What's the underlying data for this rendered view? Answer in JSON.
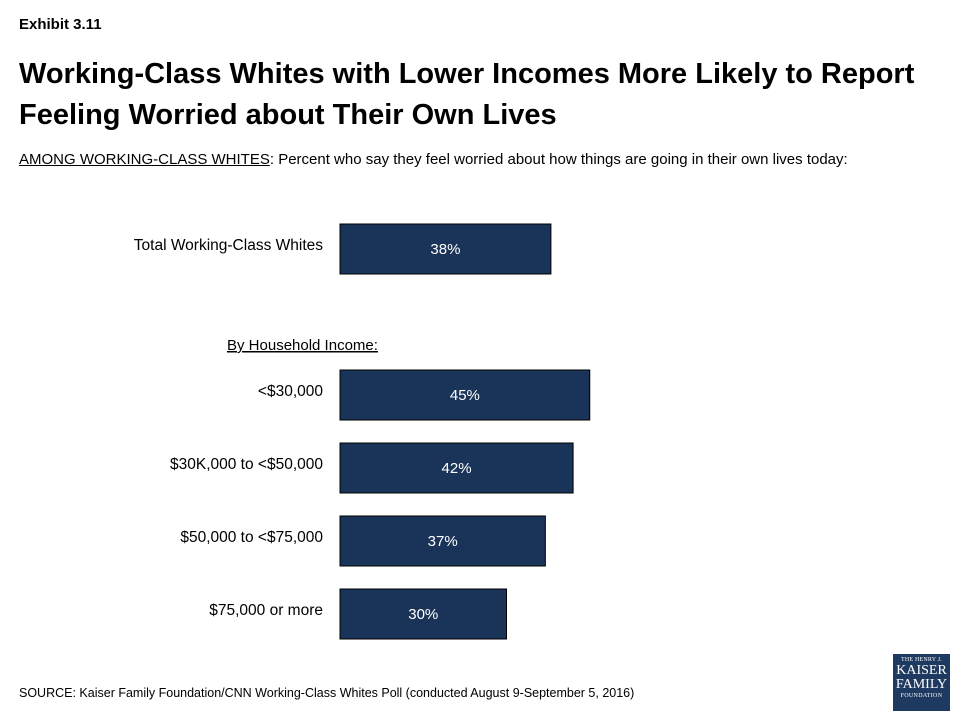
{
  "exhibit_label": "Exhibit 3.11",
  "title": "Working-Class Whites with Lower Incomes More Likely to Report Feeling Worried about Their Own Lives",
  "subtitle": {
    "underlined": "AMONG WORKING-CLASS WHITES",
    "text": ": Percent who say they feel worried about how things are going in their own lives today:"
  },
  "group_label": "By Household Income:",
  "source": "SOURCE: Kaiser Family Foundation/CNN Working-Class Whites Poll (conducted August 9-September 5, 2016)",
  "logo": {
    "line1": "THE HENRY J.",
    "line2": "KAISER",
    "line3": "FAMILY",
    "line4": "FOUNDATION"
  },
  "colors": {
    "bar": "#1a3358",
    "bar_text": "#ffffff",
    "logo_bg": "#1f3a60"
  },
  "chart_data": {
    "type": "bar",
    "orientation": "horizontal",
    "title": "Working-Class Whites with Lower Incomes More Likely to Report Feeling Worried about Their Own Lives",
    "categories": [
      "Total Working-Class Whites",
      "<$30,000",
      "$30K,000 to <$50,000",
      "$50,000 to <$75,000",
      "$75,000 or more"
    ],
    "values": [
      38,
      45,
      42,
      37,
      30
    ],
    "value_labels": [
      "38%",
      "45%",
      "42%",
      "37%",
      "30%"
    ],
    "units": "%",
    "grid": false,
    "legend": "none"
  }
}
